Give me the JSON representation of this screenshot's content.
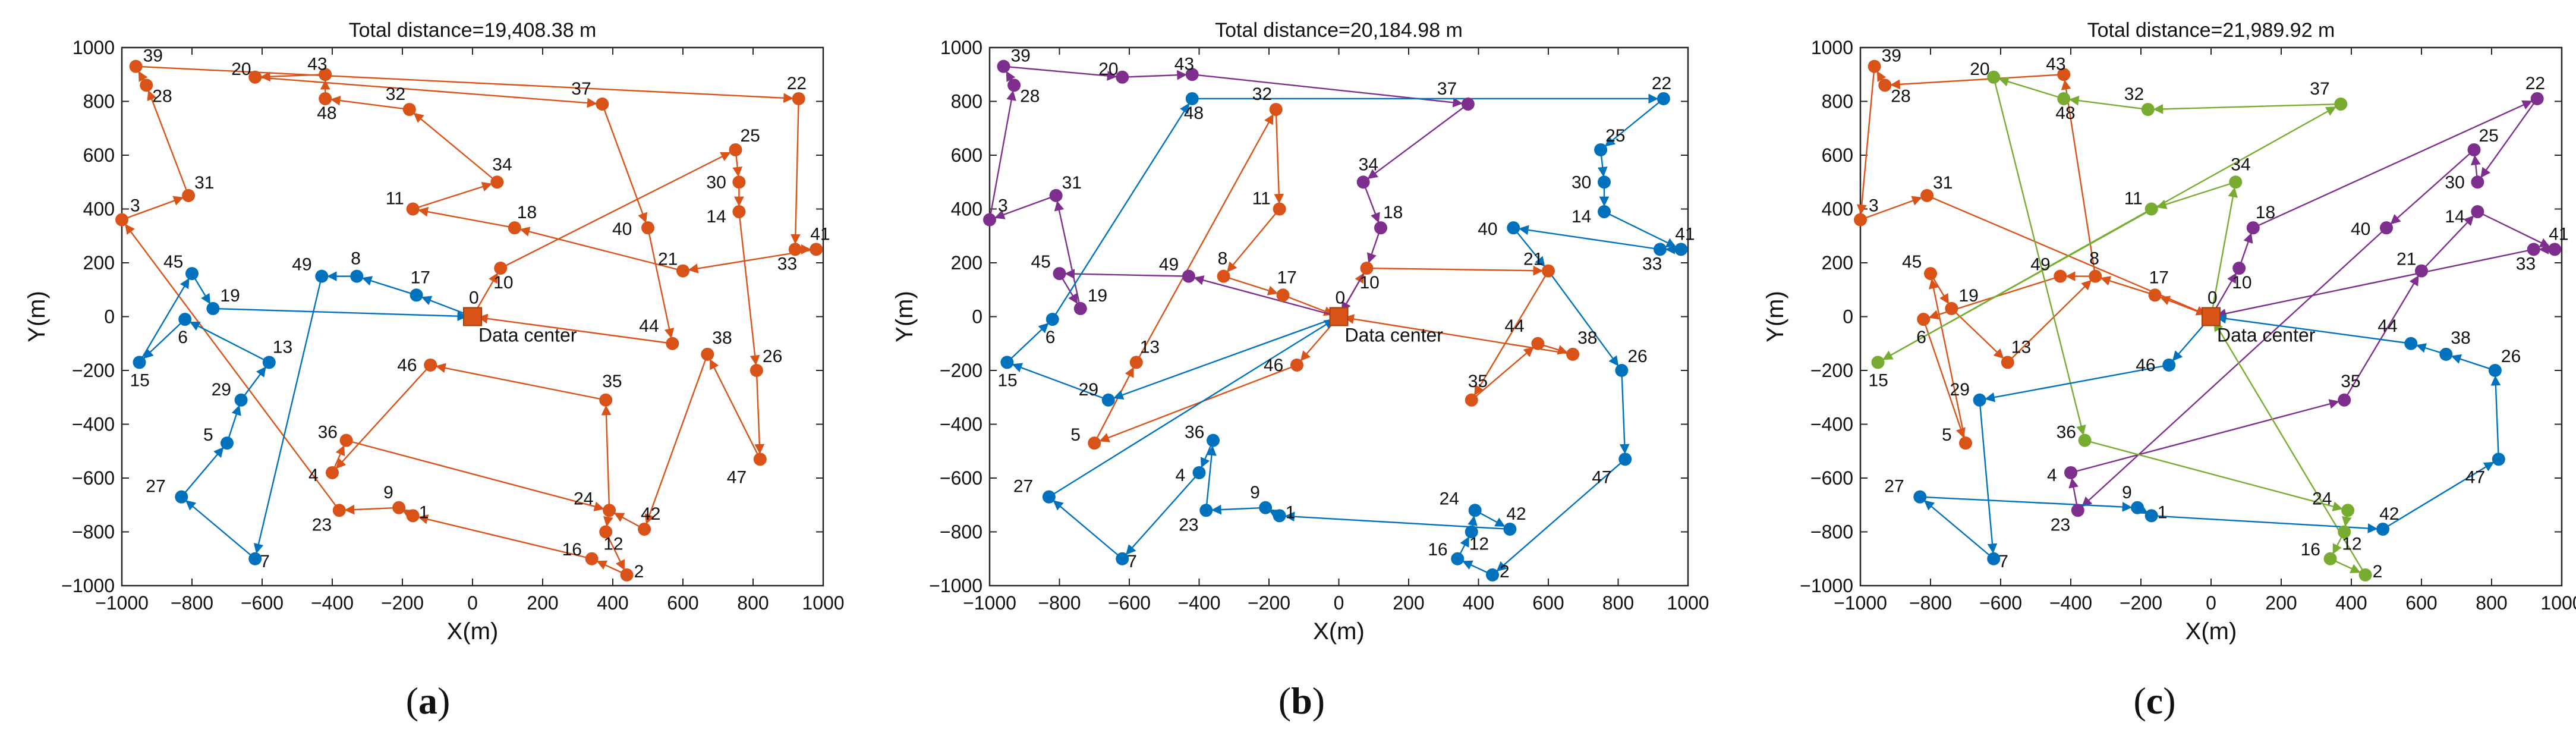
{
  "chart_data": [
    {
      "type": "line",
      "panel_label": "a",
      "title": "Total distance=19,408.38 m",
      "xlabel": "X(m)",
      "ylabel": "Y(m)",
      "xlim": [
        -1000,
        1000
      ],
      "ylim": [
        -1000,
        1000
      ],
      "xticks": [
        -1000,
        -800,
        -600,
        -400,
        -200,
        0,
        200,
        400,
        600,
        800,
        1000
      ],
      "yticks": [
        -1000,
        -800,
        -600,
        -400,
        -200,
        0,
        200,
        400,
        600,
        800,
        1000
      ],
      "center_label": "Data center",
      "routes": [
        {
          "name": "route-1",
          "color": "#D95319",
          "nodes": [
            0,
            10,
            25,
            30,
            14,
            26,
            47,
            38,
            42,
            24,
            35,
            46,
            4,
            36,
            24,
            12,
            2,
            16,
            1,
            9,
            23,
            3,
            31,
            28,
            39,
            22,
            33,
            41,
            21,
            18,
            11,
            34,
            32,
            48,
            43,
            20,
            37,
            40,
            44,
            0
          ]
        },
        {
          "name": "route-2",
          "color": "#0072BD",
          "nodes": [
            0,
            17,
            8,
            49,
            7,
            27,
            5,
            29,
            13,
            6,
            15,
            45,
            19,
            0
          ]
        }
      ]
    },
    {
      "type": "line",
      "panel_label": "b",
      "title": "Total distance=20,184.98 m",
      "xlabel": "X(m)",
      "ylabel": "Y(m)",
      "xlim": [
        -1000,
        1000
      ],
      "ylim": [
        -1000,
        1000
      ],
      "xticks": [
        -1000,
        -800,
        -600,
        -400,
        -200,
        0,
        200,
        400,
        600,
        800,
        1000
      ],
      "yticks": [
        -1000,
        -800,
        -600,
        -400,
        -200,
        0,
        200,
        400,
        600,
        800,
        1000
      ],
      "center_label": "Data center",
      "routes": [
        {
          "name": "route-1",
          "color": "#D95319",
          "nodes": [
            0,
            46,
            5,
            13,
            32,
            11,
            8,
            17,
            0,
            10,
            21,
            35,
            44,
            38,
            0
          ]
        },
        {
          "name": "route-2",
          "color": "#7E2F8E",
          "nodes": [
            0,
            49,
            45,
            19,
            31,
            3,
            28,
            39,
            20,
            43,
            37,
            34,
            18,
            10,
            0
          ]
        },
        {
          "name": "route-3",
          "color": "#0072BD",
          "nodes": [
            0,
            29,
            15,
            6,
            48,
            22,
            25,
            30,
            14,
            41,
            33,
            40,
            21,
            26,
            47,
            2,
            16,
            12,
            24,
            42,
            1,
            9,
            23,
            36,
            4,
            7,
            27,
            0
          ]
        }
      ]
    },
    {
      "type": "line",
      "panel_label": "c",
      "title": "Total distance=21,989.92 m",
      "xlabel": "X(m)",
      "ylabel": "Y(m)",
      "xlim": [
        -1000,
        1000
      ],
      "ylim": [
        -1000,
        1000
      ],
      "xticks": [
        -1000,
        -800,
        -600,
        -400,
        -200,
        0,
        200,
        400,
        600,
        800,
        1000
      ],
      "yticks": [
        -1000,
        -800,
        -600,
        -400,
        -200,
        0,
        200,
        400,
        600,
        800,
        1000
      ],
      "center_label": "Data center",
      "routes": [
        {
          "name": "route-1",
          "color": "#D95319",
          "nodes": [
            0,
            17,
            8,
            49,
            6,
            5,
            45,
            19,
            13,
            8,
            43,
            28,
            39,
            3,
            31,
            0
          ]
        },
        {
          "name": "route-2",
          "color": "#7E2F8E",
          "nodes": [
            0,
            10,
            18,
            22,
            30,
            25,
            40,
            23,
            4,
            35,
            21,
            14,
            41,
            33,
            0
          ]
        },
        {
          "name": "route-3",
          "color": "#77AC30",
          "nodes": [
            0,
            34,
            11,
            15,
            37,
            32,
            48,
            20,
            36,
            24,
            12,
            16,
            2,
            0
          ]
        },
        {
          "name": "route-4",
          "color": "#0072BD",
          "nodes": [
            0,
            46,
            29,
            7,
            27,
            9,
            1,
            42,
            47,
            26,
            38,
            44,
            0
          ]
        }
      ]
    }
  ],
  "nodes": {
    "0": [
      0,
      0
    ],
    "1": [
      -170,
      -740
    ],
    "2": [
      440,
      -960
    ],
    "3": [
      -1000,
      360
    ],
    "4": [
      -400,
      -580
    ],
    "5": [
      -700,
      -470
    ],
    "6": [
      -820,
      -10
    ],
    "7": [
      -620,
      -900
    ],
    "8": [
      -330,
      150
    ],
    "9": [
      -210,
      -710
    ],
    "10": [
      80,
      180
    ],
    "11": [
      -170,
      400
    ],
    "12": [
      380,
      -800
    ],
    "13": [
      -580,
      -170
    ],
    "14": [
      760,
      390
    ],
    "15": [
      -950,
      -170
    ],
    "16": [
      340,
      -900
    ],
    "17": [
      -160,
      80
    ],
    "18": [
      120,
      330
    ],
    "19": [
      -740,
      30
    ],
    "20": [
      -620,
      890
    ],
    "21": [
      600,
      170
    ],
    "22": [
      930,
      810
    ],
    "23": [
      -380,
      -720
    ],
    "24": [
      390,
      -720
    ],
    "25": [
      750,
      620
    ],
    "26": [
      810,
      -200
    ],
    "27": [
      -830,
      -670
    ],
    "28": [
      -930,
      860
    ],
    "29": [
      -660,
      -310
    ],
    "30": [
      760,
      500
    ],
    "31": [
      -810,
      450
    ],
    "32": [
      -180,
      770
    ],
    "33": [
      920,
      250
    ],
    "34": [
      70,
      500
    ],
    "35": [
      380,
      -310
    ],
    "36": [
      -360,
      -460
    ],
    "37": [
      370,
      790
    ],
    "38": [
      670,
      -140
    ],
    "39": [
      -960,
      930
    ],
    "40": [
      500,
      330
    ],
    "41": [
      980,
      250
    ],
    "42": [
      490,
      -790
    ],
    "43": [
      -420,
      900
    ],
    "44": [
      570,
      -100
    ],
    "45": [
      -800,
      160
    ],
    "46": [
      -120,
      -180
    ],
    "47": [
      820,
      -530
    ],
    "48": [
      -420,
      810
    ],
    "49": [
      -430,
      150
    ]
  }
}
